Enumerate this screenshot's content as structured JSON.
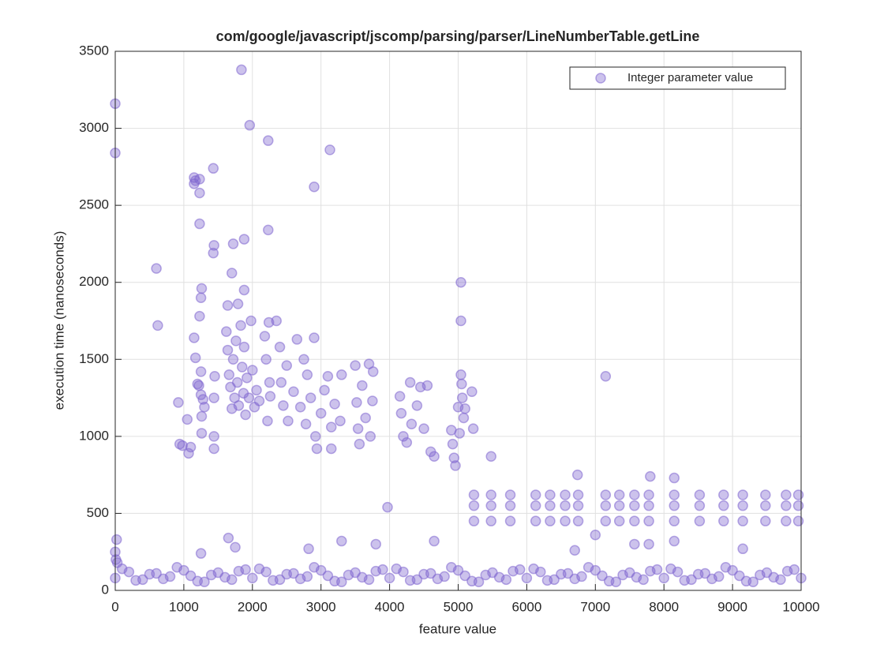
{
  "chart_data": {
    "type": "scatter",
    "title": "com/google/javascript/jscomp/parsing/parser/LineNumberTable.getLine",
    "x_label": "feature value",
    "y_label": "execution time (nanoseconds)",
    "xlim": [
      0,
      10000
    ],
    "ylim": [
      0,
      3500
    ],
    "xticks": [
      0,
      1000,
      2000,
      3000,
      4000,
      5000,
      6000,
      7000,
      8000,
      9000,
      10000
    ],
    "yticks": [
      0,
      500,
      1000,
      1500,
      2000,
      2500,
      3000,
      3500
    ],
    "grid": true,
    "legend": "northeast",
    "series": [
      {
        "name": "Integer parameter value",
        "color": "#7f66d0",
        "x": [
          0,
          200,
          400,
          600,
          800,
          1000,
          1200,
          1400,
          1600,
          1800,
          2000,
          2200,
          2400,
          2600,
          2800,
          3000,
          3200,
          3400,
          3600,
          3800,
          4000,
          4200,
          4400,
          4600,
          4800,
          5000,
          5200,
          5400,
          5600,
          5800,
          6000,
          6200,
          6400,
          6600,
          6800,
          7000,
          7200,
          7400,
          7600,
          7800,
          8000,
          8200,
          8400,
          8600,
          8800,
          9000,
          9200,
          9400,
          9600,
          9800,
          10000,
          100,
          300,
          500,
          700,
          900,
          1100,
          1300,
          1500,
          1700,
          1900,
          2100,
          2300,
          2500,
          2700,
          2900,
          3100,
          3300,
          3500,
          3700,
          3900,
          4100,
          4300,
          4500,
          4700,
          4900,
          5100,
          5300,
          5500,
          5700,
          5900,
          6100,
          6300,
          6500,
          6700,
          6900,
          7100,
          7300,
          7500,
          7700,
          7900,
          8100,
          8300,
          8500,
          8700,
          8900,
          9100,
          9300,
          9500,
          9700,
          9900,
          0,
          0,
          600,
          620,
          1150,
          1150,
          1170,
          1230,
          1230,
          1230,
          1430,
          1430,
          1440,
          1720,
          1840,
          1880,
          1960,
          2230,
          2230,
          2900,
          3130,
          1700,
          1880,
          1260,
          1250,
          1230,
          1640,
          1790,
          5040,
          5040,
          7150,
          3970,
          5480,
          6740,
          7800,
          8150,
          0,
          20,
          10,
          30,
          1650,
          1750,
          2820,
          3300,
          3800,
          4650,
          6700,
          7000,
          9150,
          1250,
          920,
          940,
          980,
          1050,
          1070,
          1100,
          1150,
          1170,
          1200,
          1220,
          1250,
          1250,
          1260,
          1280,
          1260,
          1300,
          1440,
          1440,
          1440,
          1450,
          1620,
          1640,
          1660,
          1680,
          1700,
          1720,
          1740,
          1760,
          1780,
          1800,
          1830,
          1850,
          1870,
          1880,
          1900,
          1920,
          1950,
          1980,
          2000,
          2030,
          2060,
          2100,
          2180,
          2200,
          2220,
          2240,
          2250,
          2260,
          2350,
          2400,
          2420,
          2450,
          2500,
          2520,
          2600,
          2650,
          2700,
          2750,
          2780,
          2800,
          2850,
          2900,
          2920,
          2940,
          3000,
          3050,
          3100,
          3150,
          3150,
          3200,
          3280,
          3300,
          3500,
          3520,
          3540,
          3560,
          3600,
          3650,
          3700,
          3720,
          3750,
          3760,
          4150,
          4170,
          4200,
          4250,
          4300,
          4320,
          4400,
          4450,
          4500,
          4550,
          4600,
          4650,
          4900,
          4920,
          4940,
          4960,
          5000,
          5020,
          5040,
          5050,
          5060,
          5080,
          5100,
          5200,
          5220,
          5230,
          5230,
          5230,
          5480,
          5480,
          5480,
          5760,
          5760,
          5760,
          6130,
          6130,
          6130,
          6340,
          6340,
          6340,
          6560,
          6560,
          6560,
          6750,
          6750,
          6750,
          7150,
          7150,
          7150,
          7350,
          7350,
          7350,
          7570,
          7570,
          7570,
          7780,
          7780,
          7780,
          8150,
          8150,
          8150,
          8520,
          8520,
          8520,
          8870,
          8870,
          8870,
          9150,
          9150,
          9150,
          9480,
          9480,
          9480,
          9780,
          9780,
          9780,
          9960,
          9960,
          9960,
          7570,
          7780,
          8150
        ],
        "values": [
          80,
          120,
          70,
          110,
          90,
          130,
          60,
          100,
          85,
          125,
          80,
          120,
          70,
          110,
          90,
          130,
          60,
          100,
          85,
          125,
          80,
          120,
          70,
          110,
          90,
          130,
          60,
          100,
          85,
          125,
          80,
          120,
          70,
          110,
          90,
          130,
          60,
          100,
          85,
          125,
          80,
          120,
          70,
          110,
          90,
          130,
          60,
          100,
          85,
          125,
          80,
          140,
          65,
          105,
          75,
          150,
          95,
          55,
          115,
          70,
          135,
          140,
          65,
          105,
          75,
          150,
          95,
          55,
          115,
          70,
          135,
          140,
          65,
          105,
          75,
          150,
          95,
          55,
          115,
          70,
          135,
          140,
          65,
          105,
          75,
          150,
          95,
          55,
          115,
          70,
          135,
          140,
          65,
          105,
          75,
          150,
          95,
          55,
          115,
          70,
          135,
          3160,
          2840,
          2090,
          1720,
          2680,
          2640,
          2660,
          2670,
          2580,
          2380,
          2740,
          2190,
          2240,
          2250,
          3380,
          2280,
          3020,
          2920,
          2340,
          2620,
          2860,
          2060,
          1950,
          1960,
          1900,
          1780,
          1850,
          1860,
          2000,
          1750,
          1390,
          540,
          870,
          750,
          740,
          730,
          250,
          330,
          200,
          180,
          340,
          280,
          270,
          320,
          300,
          320,
          260,
          360,
          270,
          240,
          1220,
          950,
          940,
          1110,
          890,
          930,
          1640,
          1510,
          1340,
          1330,
          1420,
          1270,
          1130,
          1240,
          1020,
          1190,
          1250,
          1000,
          920,
          1390,
          1680,
          1560,
          1400,
          1320,
          1180,
          1500,
          1250,
          1620,
          1350,
          1200,
          1720,
          1450,
          1280,
          1580,
          1140,
          1380,
          1250,
          1750,
          1430,
          1190,
          1300,
          1230,
          1650,
          1500,
          1100,
          1740,
          1350,
          1260,
          1750,
          1580,
          1350,
          1200,
          1460,
          1100,
          1290,
          1630,
          1190,
          1500,
          1080,
          1400,
          1250,
          1640,
          1000,
          920,
          1150,
          1300,
          1390,
          1060,
          920,
          1210,
          1100,
          1400,
          1460,
          1220,
          1050,
          950,
          1330,
          1120,
          1470,
          1000,
          1230,
          1420,
          1260,
          1150,
          1000,
          960,
          1350,
          1080,
          1200,
          1320,
          1050,
          1330,
          900,
          870,
          1040,
          950,
          860,
          810,
          1190,
          1020,
          1400,
          1340,
          1250,
          1120,
          1180,
          1290,
          1050,
          450,
          550,
          620,
          450,
          550,
          620,
          450,
          550,
          620,
          450,
          550,
          620,
          450,
          550,
          620,
          450,
          550,
          620,
          450,
          550,
          620,
          450,
          550,
          620,
          450,
          550,
          620,
          450,
          550,
          620,
          450,
          550,
          620,
          450,
          550,
          620,
          450,
          550,
          620,
          450,
          550,
          620,
          450,
          550,
          620,
          450,
          550,
          620,
          450,
          550,
          620,
          450,
          550,
          620,
          300,
          300,
          320
        ]
      }
    ]
  }
}
